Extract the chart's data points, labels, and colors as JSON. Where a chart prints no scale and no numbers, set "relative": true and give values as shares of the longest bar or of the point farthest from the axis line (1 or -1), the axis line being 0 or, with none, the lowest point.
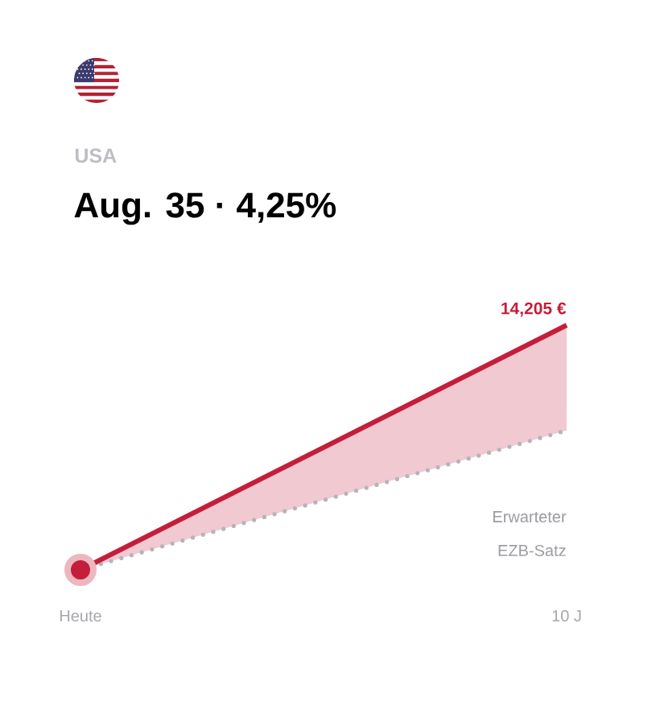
{
  "chart_data": {
    "type": "line",
    "subtitle": "USA",
    "title": "Aug. 35 · 4,25%",
    "categories": [
      "Heute",
      "10 J"
    ],
    "relative": true,
    "series": [
      {
        "color": "#c41e3a",
        "values": [
          0,
          1
        ],
        "lower": [
          0,
          0.57
        ],
        "upper": [
          0,
          1
        ]
      },
      {
        "name": "Erwarteter EZB-Satz",
        "color": "#b4b4bb",
        "values": [
          0,
          0.57
        ],
        "line_style": "dotted"
      },
      {
        "type": "scatter",
        "x": [
          "Heute"
        ],
        "values": [
          0
        ],
        "color": "#c41e3a",
        "marker": "circle"
      }
    ],
    "annotations": [
      {
        "text": "14,205 €",
        "x": "10 J",
        "y": 1
      }
    ]
  }
}
